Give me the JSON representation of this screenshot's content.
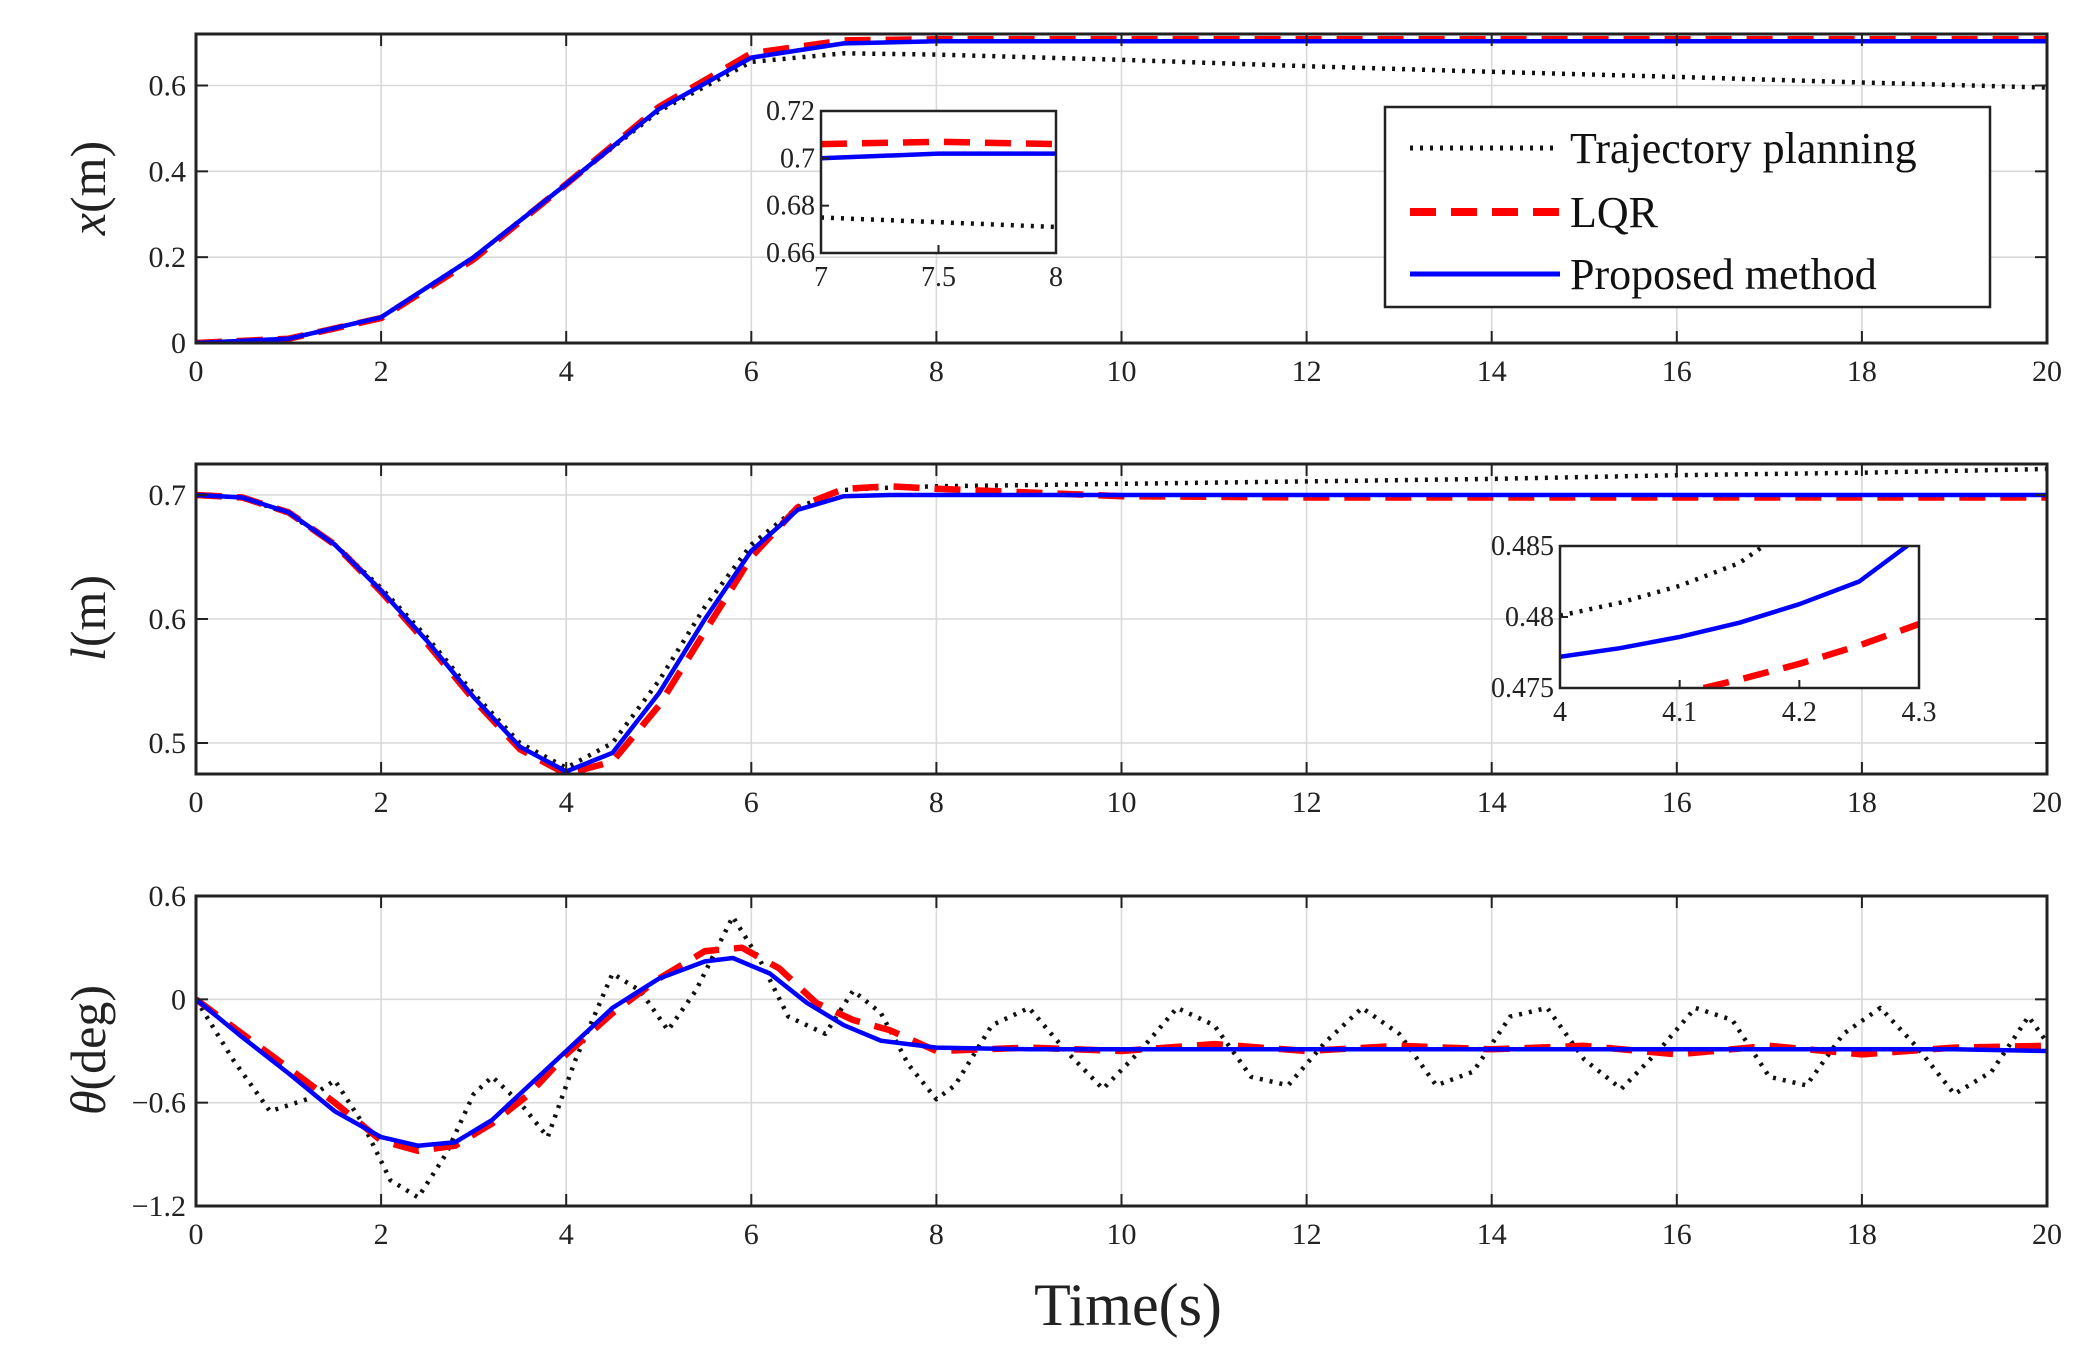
{
  "chart_data": [
    {
      "type": "line",
      "id": "x",
      "ylabel_sym": "x",
      "ylabel_unit": "(m)",
      "xlim": [
        0,
        20
      ],
      "ylim": [
        0,
        0.72
      ],
      "xticks": [
        0,
        2,
        4,
        6,
        8,
        10,
        12,
        14,
        16,
        18,
        20
      ],
      "yticks": [
        0,
        0.2,
        0.4,
        0.6
      ],
      "ytick_labels": [
        "0",
        "0.2",
        "0.4",
        "0.6"
      ],
      "grid": true,
      "legend": {
        "position": "right",
        "entries": [
          "Trajectory planning",
          "LQR",
          "Proposed method"
        ]
      },
      "series": [
        {
          "name": "Trajectory planning",
          "color": "#111111",
          "style": "dotted",
          "x": [
            0,
            1,
            2,
            3,
            4,
            5,
            6,
            7,
            8,
            10,
            12,
            14,
            16,
            18,
            20
          ],
          "y": [
            0,
            0.01,
            0.06,
            0.2,
            0.37,
            0.54,
            0.655,
            0.675,
            0.672,
            0.66,
            0.645,
            0.632,
            0.62,
            0.607,
            0.595
          ]
        },
        {
          "name": "LQR",
          "color": "#ff0000",
          "style": "dashed",
          "x": [
            0,
            1,
            2,
            3,
            4,
            5,
            6,
            7,
            8,
            10,
            12,
            14,
            16,
            18,
            20
          ],
          "y": [
            0,
            0.01,
            0.058,
            0.195,
            0.37,
            0.55,
            0.675,
            0.705,
            0.708,
            0.708,
            0.708,
            0.708,
            0.708,
            0.708,
            0.708
          ]
        },
        {
          "name": "Proposed method",
          "color": "#0000ff",
          "style": "solid",
          "x": [
            0,
            1,
            2,
            3,
            4,
            5,
            6,
            7,
            8,
            10,
            12,
            14,
            16,
            18,
            20
          ],
          "y": [
            0,
            0.01,
            0.06,
            0.2,
            0.37,
            0.545,
            0.665,
            0.698,
            0.703,
            0.703,
            0.703,
            0.703,
            0.703,
            0.703,
            0.703
          ]
        }
      ],
      "inset": {
        "xlim": [
          7,
          8
        ],
        "ylim": [
          0.66,
          0.72
        ],
        "xticks": [
          7,
          7.5,
          8
        ],
        "xtick_labels": [
          "7",
          "7.5",
          "8"
        ],
        "yticks": [
          0.66,
          0.68,
          0.7,
          0.72
        ],
        "ytick_labels": [
          "0.66",
          "0.68",
          "0.7",
          "0.72"
        ],
        "series": [
          {
            "name": "Trajectory planning",
            "x": [
              7,
              7.5,
              8
            ],
            "y": [
              0.675,
              0.673,
              0.671
            ]
          },
          {
            "name": "LQR",
            "x": [
              7,
              7.5,
              8
            ],
            "y": [
              0.706,
              0.707,
              0.706
            ]
          },
          {
            "name": "Proposed method",
            "x": [
              7,
              7.5,
              8
            ],
            "y": [
              0.7,
              0.702,
              0.702
            ]
          }
        ]
      }
    },
    {
      "type": "line",
      "id": "l",
      "ylabel_sym": "l",
      "ylabel_unit": "(m)",
      "xlim": [
        0,
        20
      ],
      "ylim": [
        0.475,
        0.725
      ],
      "xticks": [
        0,
        2,
        4,
        6,
        8,
        10,
        12,
        14,
        16,
        18,
        20
      ],
      "yticks": [
        0.5,
        0.6,
        0.7
      ],
      "ytick_labels": [
        "0.5",
        "0.6",
        "0.7"
      ],
      "grid": true,
      "series": [
        {
          "name": "Trajectory planning",
          "color": "#111111",
          "style": "dotted",
          "x": [
            0,
            0.5,
            1,
            1.5,
            2,
            2.5,
            3,
            3.5,
            4,
            4.5,
            5,
            5.5,
            6,
            6.5,
            7,
            7.5,
            8,
            10,
            12,
            14,
            16,
            18,
            20
          ],
          "y": [
            0.7,
            0.698,
            0.685,
            0.66,
            0.625,
            0.585,
            0.54,
            0.5,
            0.48,
            0.5,
            0.55,
            0.61,
            0.66,
            0.69,
            0.704,
            0.706,
            0.707,
            0.709,
            0.711,
            0.713,
            0.716,
            0.718,
            0.721
          ]
        },
        {
          "name": "LQR",
          "color": "#ff0000",
          "style": "dashed",
          "x": [
            0,
            0.5,
            1,
            1.5,
            2,
            2.5,
            3,
            3.5,
            4,
            4.5,
            5,
            5.5,
            6,
            6.5,
            7,
            7.5,
            8,
            10,
            12,
            14,
            16,
            18,
            20
          ],
          "y": [
            0.7,
            0.698,
            0.686,
            0.66,
            0.622,
            0.58,
            0.535,
            0.495,
            0.475,
            0.485,
            0.53,
            0.59,
            0.65,
            0.69,
            0.705,
            0.707,
            0.705,
            0.699,
            0.698,
            0.698,
            0.698,
            0.698,
            0.698
          ]
        },
        {
          "name": "Proposed method",
          "color": "#0000ff",
          "style": "solid",
          "x": [
            0,
            0.5,
            1,
            1.5,
            2,
            2.5,
            3,
            3.5,
            4,
            4.5,
            5,
            5.5,
            6,
            6.5,
            7,
            7.5,
            8,
            10,
            12,
            14,
            16,
            18,
            20
          ],
          "y": [
            0.7,
            0.698,
            0.686,
            0.66,
            0.623,
            0.582,
            0.537,
            0.497,
            0.477,
            0.492,
            0.54,
            0.6,
            0.655,
            0.688,
            0.699,
            0.7,
            0.7,
            0.7,
            0.7,
            0.7,
            0.7,
            0.7,
            0.7
          ]
        }
      ],
      "inset": {
        "xlim": [
          4,
          4.3
        ],
        "ylim": [
          0.475,
          0.485
        ],
        "xticks": [
          4,
          4.1,
          4.2,
          4.3
        ],
        "xtick_labels": [
          "4",
          "4.1",
          "4.2",
          "4.3"
        ],
        "yticks": [
          0.475,
          0.48,
          0.485
        ],
        "ytick_labels": [
          "0.475",
          "0.48",
          "0.485"
        ],
        "series": [
          {
            "name": "Trajectory planning",
            "x": [
              4,
              4.05,
              4.1,
              4.15,
              4.17
            ],
            "y": [
              0.4801,
              0.481,
              0.4822,
              0.4838,
              0.485
            ]
          },
          {
            "name": "LQR",
            "x": [
              4.12,
              4.15,
              4.2,
              4.25,
              4.3
            ],
            "y": [
              0.475,
              0.4756,
              0.4767,
              0.478,
              0.4795
            ]
          },
          {
            "name": "Proposed method",
            "x": [
              4,
              4.05,
              4.1,
              4.15,
              4.2,
              4.25,
              4.29
            ],
            "y": [
              0.4772,
              0.4778,
              0.4786,
              0.4796,
              0.4809,
              0.4825,
              0.485
            ]
          }
        ]
      }
    },
    {
      "type": "line",
      "id": "theta",
      "ylabel_sym": "θ",
      "ylabel_unit": "(deg)",
      "xlabel": "Time(s)",
      "xlim": [
        0,
        20
      ],
      "ylim": [
        -1.2,
        0.6
      ],
      "xticks": [
        0,
        2,
        4,
        6,
        8,
        10,
        12,
        14,
        16,
        18,
        20
      ],
      "yticks": [
        -1.2,
        -0.6,
        0,
        0.6
      ],
      "ytick_labels": [
        "−1.2",
        "−0.6",
        "0",
        "0.6"
      ],
      "grid": true,
      "series": [
        {
          "name": "Trajectory planning",
          "color": "#111111",
          "style": "dotted",
          "x": [
            0,
            0.4,
            0.8,
            1.2,
            1.5,
            1.8,
            2.1,
            2.4,
            2.7,
            3.0,
            3.2,
            3.5,
            3.8,
            4.1,
            4.5,
            4.8,
            5.1,
            5.4,
            5.8,
            6.1,
            6.4,
            6.8,
            7.1,
            7.4,
            7.7,
            8.0,
            8.2,
            8.6,
            9.0,
            9.4,
            9.8,
            10.2,
            10.6,
            11.0,
            11.4,
            11.8,
            12.2,
            12.6,
            13.0,
            13.4,
            13.8,
            14.2,
            14.6,
            15.0,
            15.4,
            15.8,
            16.2,
            16.6,
            17.0,
            17.4,
            17.8,
            18.2,
            18.6,
            19.0,
            19.4,
            19.8,
            20.0
          ],
          "y": [
            0,
            -0.35,
            -0.65,
            -0.58,
            -0.47,
            -0.72,
            -1.05,
            -1.15,
            -0.9,
            -0.55,
            -0.45,
            -0.6,
            -0.8,
            -0.35,
            0.15,
            0.05,
            -0.18,
            0.05,
            0.48,
            0.22,
            -0.1,
            -0.2,
            0.05,
            -0.08,
            -0.38,
            -0.58,
            -0.5,
            -0.15,
            -0.05,
            -0.3,
            -0.52,
            -0.3,
            -0.05,
            -0.15,
            -0.45,
            -0.5,
            -0.25,
            -0.05,
            -0.2,
            -0.5,
            -0.42,
            -0.1,
            -0.05,
            -0.35,
            -0.52,
            -0.3,
            -0.05,
            -0.12,
            -0.45,
            -0.5,
            -0.2,
            -0.05,
            -0.28,
            -0.55,
            -0.42,
            -0.1,
            -0.25
          ]
        },
        {
          "name": "LQR",
          "color": "#ff0000",
          "style": "dashed",
          "x": [
            0,
            0.5,
            1,
            1.5,
            2,
            2.4,
            2.8,
            3.2,
            3.6,
            4,
            4.5,
            5,
            5.5,
            5.9,
            6.3,
            6.7,
            7.1,
            7.5,
            8,
            9,
            10,
            11,
            12,
            13,
            14,
            15,
            16,
            17,
            18,
            19,
            20
          ],
          "y": [
            0,
            -0.2,
            -0.4,
            -0.6,
            -0.82,
            -0.88,
            -0.85,
            -0.72,
            -0.55,
            -0.32,
            -0.08,
            0.12,
            0.28,
            0.3,
            0.18,
            -0.02,
            -0.12,
            -0.18,
            -0.3,
            -0.28,
            -0.3,
            -0.26,
            -0.3,
            -0.27,
            -0.29,
            -0.27,
            -0.32,
            -0.27,
            -0.32,
            -0.28,
            -0.27
          ]
        },
        {
          "name": "Proposed method",
          "color": "#0000ff",
          "style": "solid",
          "x": [
            0,
            0.5,
            1,
            1.5,
            2,
            2.4,
            2.8,
            3.2,
            3.6,
            4,
            4.5,
            5,
            5.5,
            5.8,
            6.2,
            6.6,
            7,
            7.4,
            8,
            9,
            10,
            11,
            12,
            13,
            14,
            15,
            16,
            17,
            18,
            19,
            20
          ],
          "y": [
            0,
            -0.22,
            -0.43,
            -0.65,
            -0.8,
            -0.85,
            -0.83,
            -0.7,
            -0.5,
            -0.3,
            -0.05,
            0.12,
            0.22,
            0.24,
            0.15,
            -0.02,
            -0.15,
            -0.24,
            -0.28,
            -0.29,
            -0.29,
            -0.29,
            -0.29,
            -0.29,
            -0.29,
            -0.29,
            -0.29,
            -0.29,
            -0.29,
            -0.29,
            -0.3
          ]
        }
      ]
    }
  ]
}
